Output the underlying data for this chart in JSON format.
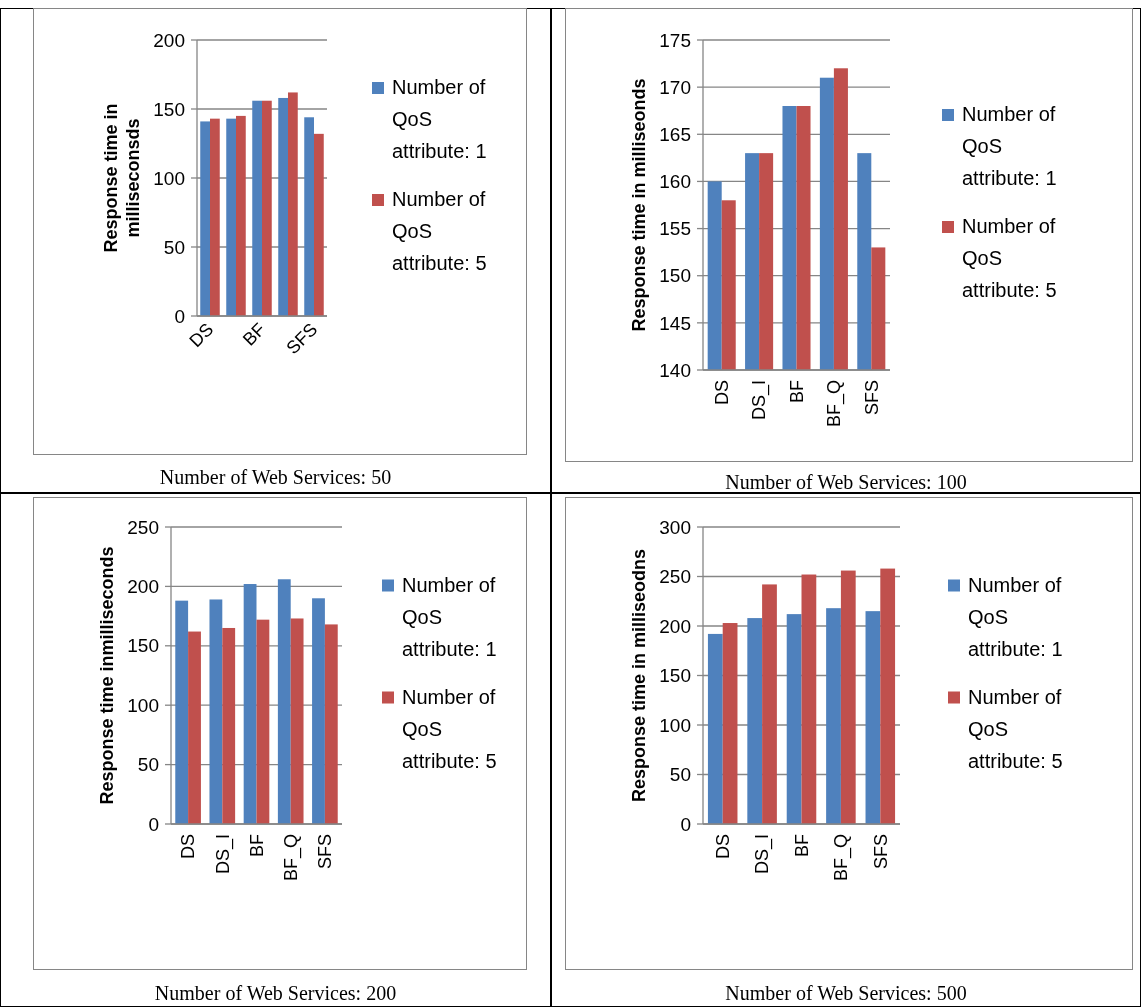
{
  "chart_data": [
    {
      "type": "bar",
      "ylabel": "Response time in milliseconsds",
      "categories": [
        "DS",
        null,
        "BF",
        null,
        "SFS"
      ],
      "series": [
        {
          "name": "Number of QoS attribute: 1",
          "color": "#4f81bd",
          "values": [
            141,
            143,
            156,
            158,
            144
          ]
        },
        {
          "name": "Number of QoS attribute: 5",
          "color": "#c0504d",
          "values": [
            143,
            145,
            156,
            162,
            132
          ]
        }
      ],
      "ylim": [
        0,
        200
      ],
      "yticks": [
        0,
        50,
        100,
        150,
        200
      ],
      "grid": "y",
      "legend": "right",
      "annotations": [
        "Number of Web Services: 50"
      ]
    },
    {
      "type": "bar",
      "ylabel": "Response time in milliseonds",
      "categories": [
        "DS",
        "DS_I",
        "BF",
        "BF_Q",
        "SFS"
      ],
      "series": [
        {
          "name": "Number of QoS attribute: 1",
          "color": "#4f81bd",
          "values": [
            160,
            163,
            168,
            171,
            163
          ]
        },
        {
          "name": "Number of QoS attribute: 5",
          "color": "#c0504d",
          "values": [
            158,
            163,
            168,
            172,
            153
          ]
        }
      ],
      "ylim": [
        140,
        175
      ],
      "yticks": [
        140,
        145,
        150,
        155,
        160,
        165,
        170,
        175
      ],
      "grid": "y",
      "legend": "right",
      "annotations": [
        "Number of Web Services: 100"
      ]
    },
    {
      "type": "bar",
      "ylabel": "Response time inmilliseconds",
      "categories": [
        "DS",
        "DS_I",
        "BF",
        "BF_Q",
        "SFS"
      ],
      "series": [
        {
          "name": "Number of QoS attribute: 1",
          "color": "#4f81bd",
          "values": [
            188,
            189,
            202,
            206,
            190
          ]
        },
        {
          "name": "Number of QoS attribute: 5",
          "color": "#c0504d",
          "values": [
            162,
            165,
            172,
            173,
            168
          ]
        }
      ],
      "ylim": [
        0,
        250
      ],
      "yticks": [
        0,
        50,
        100,
        150,
        200,
        250
      ],
      "grid": "y",
      "legend": "right",
      "annotations": [
        "Number of Web Services: 200"
      ]
    },
    {
      "type": "bar",
      "ylabel": "Response time in milliseodns",
      "categories": [
        "DS",
        "DS_I",
        "BF",
        "BF_Q",
        "SFS"
      ],
      "series": [
        {
          "name": "Number of QoS attribute: 1",
          "color": "#4f81bd",
          "values": [
            192,
            208,
            212,
            218,
            215
          ]
        },
        {
          "name": "Number of QoS attribute: 5",
          "color": "#c0504d",
          "values": [
            203,
            242,
            252,
            256,
            258
          ]
        }
      ],
      "ylim": [
        0,
        300
      ],
      "yticks": [
        0,
        50,
        100,
        150,
        200,
        250,
        300
      ],
      "grid": "y",
      "legend": "right",
      "annotations": [
        "Number of Web Services: 500"
      ]
    }
  ]
}
